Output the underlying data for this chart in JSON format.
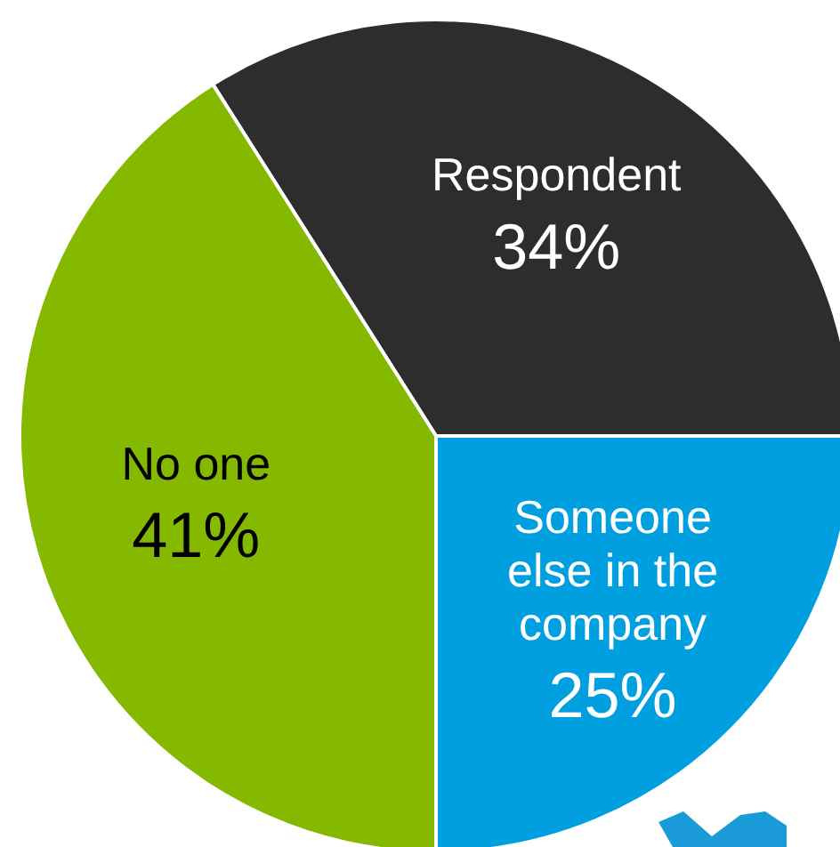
{
  "chart_data": {
    "type": "pie",
    "categories": [
      "Respondent",
      "Someone else in the company",
      "No one"
    ],
    "values": [
      34,
      25,
      41
    ],
    "colors": [
      "#2d2d2d",
      "#009fdf",
      "#84b900"
    ],
    "value_labels": [
      "34%",
      "25%",
      "41%"
    ],
    "legend": false
  }
}
